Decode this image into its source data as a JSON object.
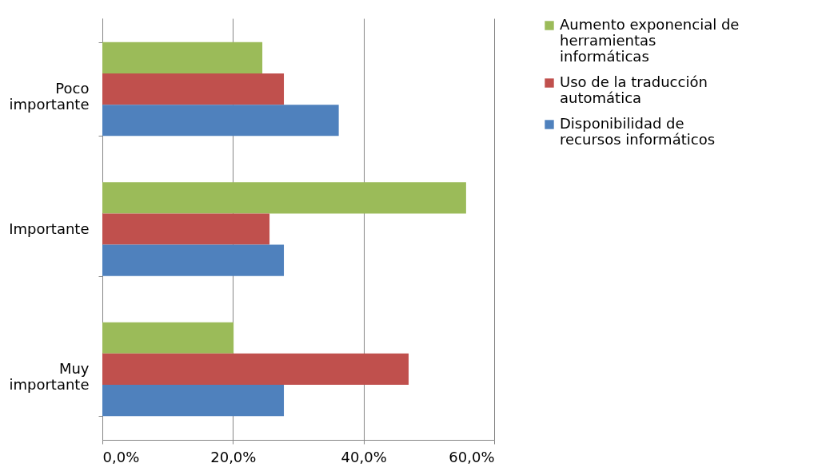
{
  "chart_data": {
    "type": "bar",
    "orientation": "horizontal",
    "categories": [
      "Poco importante",
      "Importante",
      "Muy importante"
    ],
    "series": [
      {
        "name": "Aumento exponencial de herramientas informáticas",
        "color": "#9bbb59",
        "values": [
          24.5,
          55.7,
          20.1
        ]
      },
      {
        "name": "Uso de la traducción automática",
        "color": "#c0504d",
        "values": [
          27.8,
          25.6,
          46.9
        ]
      },
      {
        "name": "Disponibilidad de recursos informáticos",
        "color": "#4f81bd",
        "values": [
          36.2,
          27.8,
          27.8
        ]
      }
    ],
    "xlim": [
      0,
      60
    ],
    "xticks": [
      {
        "value": 0,
        "label": "0,0%"
      },
      {
        "value": 20,
        "label": "20,0%"
      },
      {
        "value": 40,
        "label": "40,0%"
      },
      {
        "value": 60,
        "label": "60,0%"
      }
    ],
    "grid": "x",
    "legend": "right"
  }
}
